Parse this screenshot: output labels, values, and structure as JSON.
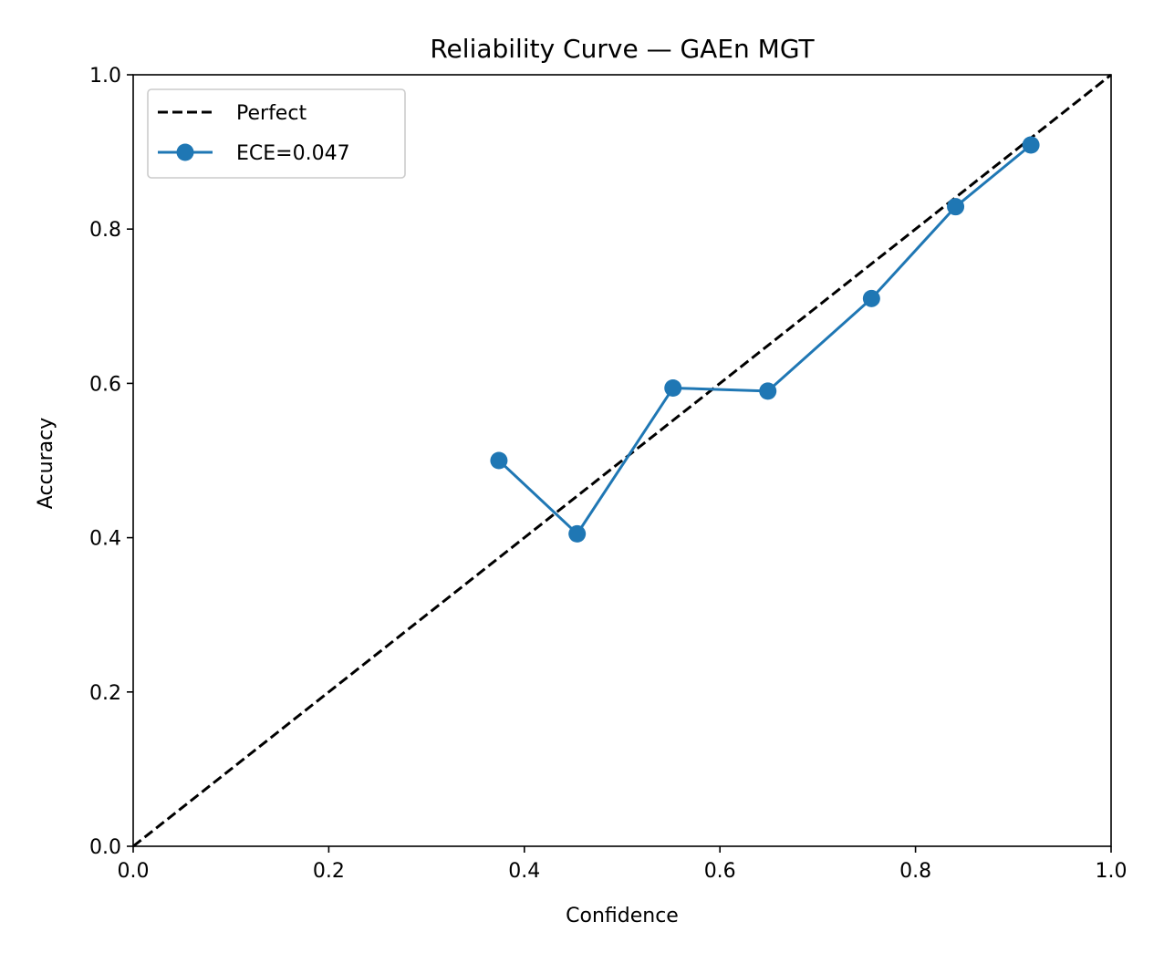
{
  "chart_data": {
    "type": "line",
    "title": "Reliability Curve — GAEn MGT",
    "xlabel": "Confidence",
    "ylabel": "Accuracy",
    "xlim": [
      0.0,
      1.0
    ],
    "ylim": [
      0.0,
      1.0
    ],
    "xticks": [
      "0.0",
      "0.2",
      "0.4",
      "0.6",
      "0.8",
      "1.0"
    ],
    "yticks": [
      "0.0",
      "0.2",
      "0.4",
      "0.6",
      "0.8",
      "1.0"
    ],
    "grid": false,
    "legend_position": "upper-left",
    "series": [
      {
        "name": "Perfect",
        "style": "dashed",
        "color": "#000000",
        "x": [
          0.0,
          1.0
        ],
        "y": [
          0.0,
          1.0
        ]
      },
      {
        "name": "ECE=0.047",
        "style": "solid-markers",
        "color": "#1f77b4",
        "x": [
          0.374,
          0.454,
          0.552,
          0.649,
          0.755,
          0.841,
          0.918
        ],
        "y": [
          0.5,
          0.405,
          0.594,
          0.59,
          0.71,
          0.829,
          0.909
        ]
      }
    ]
  }
}
